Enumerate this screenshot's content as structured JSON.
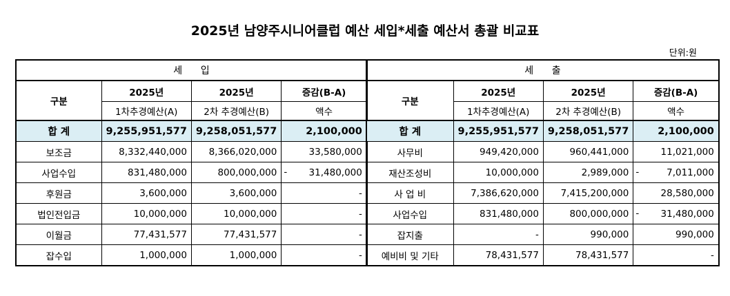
{
  "title": "2025년 남양주시니어클럽 예산 세입*세출 예산서 총괄 비교표",
  "unit": "단위:원",
  "income": {
    "section": "세      입",
    "header": {
      "col1": "구분",
      "col2_year": "2025년",
      "col2_sub": "1차추경예산(A)",
      "col3_year": "2025년",
      "col3_sub": "2차 추경예산(B)",
      "col4": "증감(B-A)",
      "col4_sub": "액수"
    },
    "total": {
      "label": "합 계",
      "a": "9,255,951,577",
      "b": "9,258,051,577",
      "diff": "2,100,000"
    },
    "rows": [
      {
        "label": "보조금",
        "a": "8,332,440,000",
        "b": "8,366,020,000",
        "diff_sign": "",
        "diff": "33,580,000"
      },
      {
        "label": "사업수입",
        "a": "831,480,000",
        "b": "800,000,000",
        "diff_sign": "-",
        "diff": "31,480,000"
      },
      {
        "label": "후원금",
        "a": "3,600,000",
        "b": "3,600,000",
        "diff_sign": "",
        "diff": "-"
      },
      {
        "label": "법인전입금",
        "a": "10,000,000",
        "b": "10,000,000",
        "diff_sign": "",
        "diff": "-"
      },
      {
        "label": "이월금",
        "a": "77,431,577",
        "b": "77,431,577",
        "diff_sign": "",
        "diff": "-"
      },
      {
        "label": "잡수입",
        "a": "1,000,000",
        "b": "1,000,000",
        "diff_sign": "",
        "diff": "-"
      }
    ]
  },
  "expense": {
    "section": "세      출",
    "header": {
      "col1": "구분",
      "col2_year": "2025년",
      "col2_sub": "1차추경예산(A)",
      "col3_year": "2025년",
      "col3_sub": "2차 추경예산(B)",
      "col4": "증감(B-A)",
      "col4_sub": "액수"
    },
    "total": {
      "label": "합 계",
      "a": "9,255,951,577",
      "b": "9,258,051,577",
      "diff": "2,100,000"
    },
    "rows": [
      {
        "label": "사무비",
        "a": "949,420,000",
        "b": "960,441,000",
        "diff_sign": "",
        "diff": "11,021,000"
      },
      {
        "label": "재산조성비",
        "a": "10,000,000",
        "b": "2,989,000",
        "diff_sign": "-",
        "diff": "7,011,000"
      },
      {
        "label": "사 업 비",
        "a": "7,386,620,000",
        "b": "7,415,200,000",
        "diff_sign": "",
        "diff": "28,580,000"
      },
      {
        "label": "사업수입",
        "a": "831,480,000",
        "b": "800,000,000",
        "diff_sign": "-",
        "diff": "31,480,000"
      },
      {
        "label": "잡지출",
        "a": "-",
        "b": "990,000",
        "diff_sign": "",
        "diff": "990,000"
      },
      {
        "label": "예비비 및 기타",
        "a": "78,431,577",
        "b": "78,431,577",
        "diff_sign": "",
        "diff": "-"
      }
    ]
  }
}
